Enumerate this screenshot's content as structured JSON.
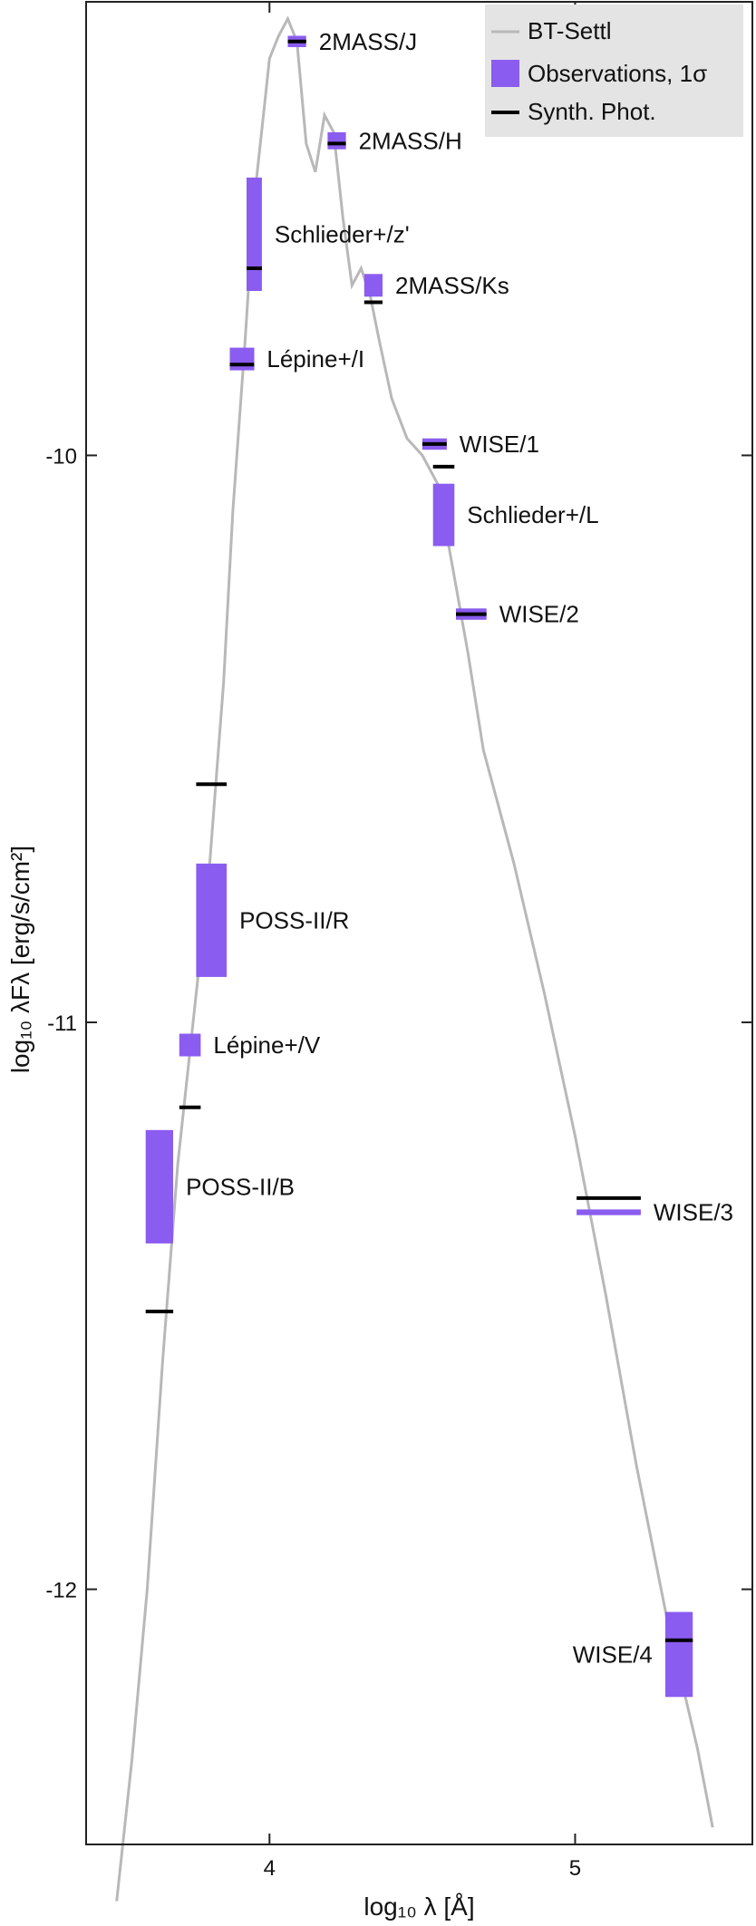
{
  "chart_data": {
    "type": "scatter",
    "xlabel": "log₁₀ λ [Å]",
    "ylabel": "log₁₀ λFλ [erg/s/cm²]",
    "xlim": [
      3.4,
      5.58
    ],
    "ylim": [
      -12.45,
      -9.2
    ],
    "x_ticks": [
      4,
      5
    ],
    "x_tick_labels": [
      "4",
      "5"
    ],
    "y_ticks": [
      -10,
      -11,
      -12
    ],
    "y_tick_labels": [
      "-10",
      "-11",
      "-12"
    ],
    "legend": {
      "position": "top-right",
      "entries": [
        {
          "label": "BT-Settl",
          "kind": "line",
          "color": "#b8b8b8"
        },
        {
          "label": "Observations, 1σ",
          "kind": "box",
          "color": "#8a5cf0"
        },
        {
          "label": "Synth. Phot.",
          "kind": "tick",
          "color": "#000000"
        }
      ]
    },
    "model_curve": {
      "name": "BT-Settl",
      "color": "#b8b8b8",
      "x": [
        3.5,
        3.55,
        3.6,
        3.65,
        3.7,
        3.75,
        3.8,
        3.85,
        3.88,
        3.92,
        3.95,
        3.98,
        4.0,
        4.03,
        4.06,
        4.09,
        4.12,
        4.15,
        4.18,
        4.21,
        4.24,
        4.27,
        4.3,
        4.33,
        4.36,
        4.4,
        4.45,
        4.5,
        4.55,
        4.6,
        4.65,
        4.7,
        4.75,
        4.8,
        4.9,
        5.0,
        5.1,
        5.2,
        5.3,
        5.4,
        5.45
      ],
      "y": [
        -12.55,
        -12.3,
        -12.0,
        -11.6,
        -11.25,
        -11.0,
        -10.75,
        -10.4,
        -10.1,
        -9.8,
        -9.55,
        -9.4,
        -9.3,
        -9.26,
        -9.23,
        -9.27,
        -9.45,
        -9.5,
        -9.4,
        -9.43,
        -9.58,
        -9.7,
        -9.67,
        -9.72,
        -9.8,
        -9.9,
        -9.97,
        -10.0,
        -10.05,
        -10.2,
        -10.35,
        -10.52,
        -10.62,
        -10.72,
        -10.95,
        -11.2,
        -11.48,
        -11.78,
        -12.05,
        -12.28,
        -12.42
      ]
    },
    "observations": [
      {
        "label": "2MASS/J",
        "x": 4.09,
        "x_halfwidth": 0.03,
        "y_low": -9.28,
        "y_high": -9.26,
        "synth": -9.27
      },
      {
        "label": "2MASS/H",
        "x": 4.22,
        "x_halfwidth": 0.03,
        "y_low": -9.46,
        "y_high": -9.43,
        "synth": -9.45
      },
      {
        "label": "2MASS/Ks",
        "x": 4.34,
        "x_halfwidth": 0.03,
        "y_low": -9.72,
        "y_high": -9.68,
        "synth": -9.73
      },
      {
        "label": "Schlieder+/z'",
        "x": 3.95,
        "x_halfwidth": 0.025,
        "y_low": -9.71,
        "y_high": -9.51,
        "synth": -9.67
      },
      {
        "label": "Lépine+/I",
        "x": 3.91,
        "x_halfwidth": 0.04,
        "y_low": -9.85,
        "y_high": -9.81,
        "synth": -9.84
      },
      {
        "label": "WISE/1",
        "x": 4.54,
        "x_halfwidth": 0.04,
        "y_low": -9.99,
        "y_high": -9.97,
        "synth": -9.98
      },
      {
        "label": "Schlieder+/L",
        "x": 4.57,
        "x_halfwidth": 0.035,
        "y_low": -10.16,
        "y_high": -10.05,
        "synth": -10.02
      },
      {
        "label": "WISE/2",
        "x": 4.66,
        "x_halfwidth": 0.05,
        "y_low": -10.29,
        "y_high": -10.27,
        "synth": -10.28
      },
      {
        "label": "POSS-II/R",
        "x": 3.81,
        "x_halfwidth": 0.05,
        "y_low": -10.92,
        "y_high": -10.72,
        "synth": -10.58
      },
      {
        "label": "Lépine+/V",
        "x": 3.74,
        "x_halfwidth": 0.035,
        "y_low": -11.06,
        "y_high": -11.02,
        "synth": -11.15
      },
      {
        "label": "POSS-II/B",
        "x": 3.64,
        "x_halfwidth": 0.045,
        "y_low": -11.39,
        "y_high": -11.19,
        "synth": -11.51
      },
      {
        "label": "WISE/3",
        "x": 5.11,
        "x_halfwidth": 0.105,
        "y_low": -11.34,
        "y_high": -11.33,
        "synth": -11.31
      },
      {
        "label": "WISE/4",
        "x": 5.34,
        "x_halfwidth": 0.045,
        "y_low": -12.19,
        "y_high": -12.04,
        "synth": -12.09
      }
    ]
  }
}
